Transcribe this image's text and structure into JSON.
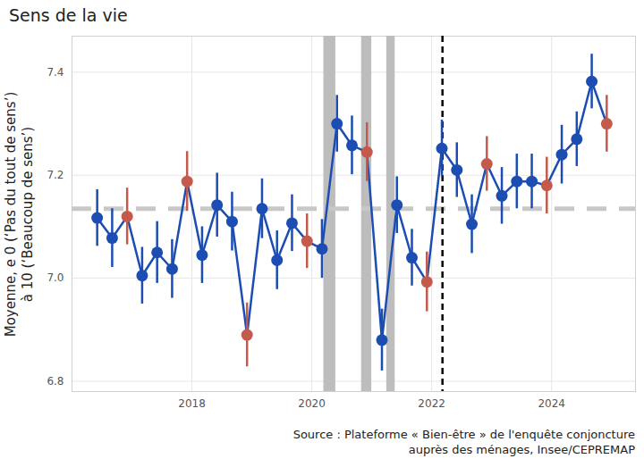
{
  "chart_data": {
    "type": "line",
    "title": "Sens de la vie",
    "y_label": "Moyenne, e 0 (‘Pas du tout de sens’)\nà 10 (‘Beaucoup de sens’)",
    "source": [
      "Source : Plateforme « Bien-être » de l'enquête conjoncture",
      "auprès des ménages, Insee/CEPREMAP"
    ],
    "x": [
      2016.42,
      2016.67,
      2016.92,
      2017.17,
      2017.42,
      2017.67,
      2017.92,
      2018.17,
      2018.42,
      2018.67,
      2018.92,
      2019.17,
      2019.42,
      2019.67,
      2019.92,
      2020.17,
      2020.42,
      2020.67,
      2020.92,
      2021.17,
      2021.42,
      2021.67,
      2021.92,
      2022.17,
      2022.42,
      2022.67,
      2022.92,
      2023.17,
      2023.42,
      2023.67,
      2023.92,
      2024.17,
      2024.42,
      2024.67,
      2024.92
    ],
    "values": [
      7.117,
      7.078,
      7.12,
      7.005,
      7.05,
      7.018,
      7.188,
      7.045,
      7.142,
      7.11,
      6.89,
      7.135,
      7.035,
      7.107,
      7.072,
      7.057,
      7.3,
      7.258,
      7.245,
      6.88,
      7.142,
      7.04,
      6.993,
      7.252,
      7.21,
      7.105,
      7.222,
      7.16,
      7.188,
      7.188,
      7.18,
      7.24,
      7.27,
      7.382,
      7.3
    ],
    "errors": [
      0.055,
      0.057,
      0.055,
      0.055,
      0.06,
      0.057,
      0.058,
      0.055,
      0.062,
      0.057,
      0.062,
      0.058,
      0.057,
      0.055,
      0.053,
      0.057,
      0.055,
      0.057,
      0.057,
      0.06,
      0.055,
      0.055,
      0.058,
      0.055,
      0.053,
      0.057,
      0.053,
      0.055,
      0.053,
      0.053,
      0.055,
      0.057,
      0.053,
      0.053,
      0.055
    ],
    "color": "#1b4db3",
    "colors": [
      "#1b4db3",
      "#1b4db3",
      "#c45a4c",
      "#1b4db3",
      "#1b4db3",
      "#1b4db3",
      "#c45a4c",
      "#1b4db3",
      "#1b4db3",
      "#1b4db3",
      "#c45a4c",
      "#1b4db3",
      "#1b4db3",
      "#1b4db3",
      "#c45a4c",
      "#1b4db3",
      "#1b4db3",
      "#1b4db3",
      "#c45a4c",
      "#1b4db3",
      "#1b4db3",
      "#1b4db3",
      "#c45a4c",
      "#1b4db3",
      "#1b4db3",
      "#1b4db3",
      "#c45a4c",
      "#1b4db3",
      "#1b4db3",
      "#1b4db3",
      "#c45a4c",
      "#1b4db3",
      "#1b4db3",
      "#1b4db3",
      "#c45a4c"
    ],
    "marker": "circle",
    "mean_line": 7.135,
    "bands": [
      [
        2020.2,
        2020.4
      ],
      [
        2020.83,
        2021.0
      ],
      [
        2021.25,
        2021.39
      ]
    ],
    "vline": 2022.18,
    "xlim": [
      2016.0,
      2025.4
    ],
    "xticks": [
      2018,
      2020,
      2022,
      2024
    ],
    "ylim": [
      6.78,
      7.47
    ],
    "yticks": [
      6.8,
      {
        "value": 7,
        "label": "7.0"
      },
      7.2,
      7.4
    ],
    "grid": true
  }
}
